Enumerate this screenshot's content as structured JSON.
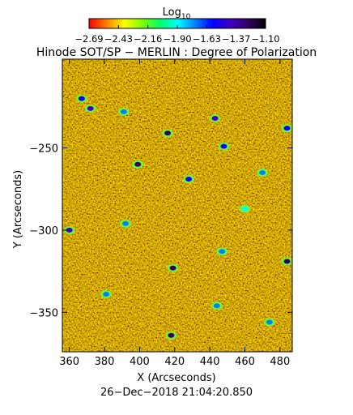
{
  "chart_data": {
    "type": "heatmap",
    "title": "Hinode SOT/SP − MERLIN : Degree of Polarization",
    "colorbar": {
      "label_base": "Log",
      "label_sub": "10",
      "ticks": [
        "−2.69",
        "−2.43",
        "−2.16",
        "−1.90",
        "−1.63",
        "−1.37",
        "−1.10"
      ],
      "range": [
        -2.69,
        -1.1
      ],
      "colors": [
        "#ff0000",
        "#ff7f00",
        "#ffff00",
        "#7fff00",
        "#00ff66",
        "#00ffff",
        "#0080ff",
        "#0000ff",
        "#4000c0",
        "#300060",
        "#000000"
      ]
    },
    "x_axis": {
      "label": "X (Arcseconds)",
      "ticks": [
        360,
        380,
        400,
        420,
        440,
        460,
        480
      ],
      "range": [
        356,
        487
      ]
    },
    "y_axis": {
      "label": "Y (Arcseconds)",
      "ticks": [
        -250,
        -300,
        -350
      ],
      "tick_labels": [
        "−250",
        "−300",
        "−350"
      ],
      "range": [
        -374,
        -196
      ]
    },
    "dominant_value": "≈ −2.6 (red/orange)",
    "features": [
      {
        "x": 372,
        "y": -226,
        "value": -1.4
      },
      {
        "x": 367,
        "y": -220,
        "value": -1.6
      },
      {
        "x": 391,
        "y": -228,
        "value": -1.7
      },
      {
        "x": 399,
        "y": -260,
        "value": -1.3
      },
      {
        "x": 416,
        "y": -241,
        "value": -1.3
      },
      {
        "x": 428,
        "y": -269,
        "value": -1.5
      },
      {
        "x": 443,
        "y": -232,
        "value": -1.4
      },
      {
        "x": 448,
        "y": -249,
        "value": -1.6
      },
      {
        "x": 470,
        "y": -265,
        "value": -1.8
      },
      {
        "x": 360,
        "y": -300,
        "value": -1.4
      },
      {
        "x": 392,
        "y": -296,
        "value": -1.7
      },
      {
        "x": 419,
        "y": -323,
        "value": -1.3
      },
      {
        "x": 447,
        "y": -313,
        "value": -1.8
      },
      {
        "x": 484,
        "y": -319,
        "value": -1.2
      },
      {
        "x": 381,
        "y": -339,
        "value": -1.7
      },
      {
        "x": 418,
        "y": -364,
        "value": -1.2
      },
      {
        "x": 444,
        "y": -346,
        "value": -1.8
      },
      {
        "x": 474,
        "y": -356,
        "value": -1.7
      },
      {
        "x": 484,
        "y": -238,
        "value": -1.5
      },
      {
        "x": 460,
        "y": -287,
        "value": -1.9
      }
    ]
  },
  "timestamp": "26−Dec−2018 21:04:20.850"
}
